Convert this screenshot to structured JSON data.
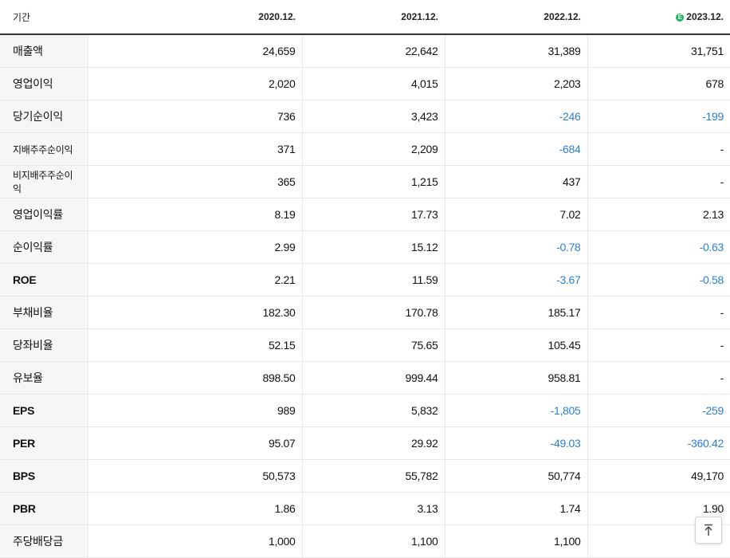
{
  "header": {
    "label": "기간",
    "periods": [
      "2020.12.",
      "2021.12.",
      "2022.12.",
      "2023.12."
    ],
    "estimate_marker": "E"
  },
  "rows": [
    {
      "label": "매출액",
      "values": [
        "24,659",
        "22,642",
        "31,389",
        "31,751"
      ]
    },
    {
      "label": "영업이익",
      "values": [
        "2,020",
        "4,015",
        "2,203",
        "678"
      ]
    },
    {
      "label": "당기순이익",
      "values": [
        "736",
        "3,423",
        "-246",
        "-199"
      ]
    },
    {
      "label": "지배주주순이익",
      "values": [
        "371",
        "2,209",
        "-684",
        "-"
      ]
    },
    {
      "label": "비지배주주순이익",
      "values": [
        "365",
        "1,215",
        "437",
        "-"
      ]
    },
    {
      "label": "영업이익률",
      "values": [
        "8.19",
        "17.73",
        "7.02",
        "2.13"
      ]
    },
    {
      "label": "순이익률",
      "values": [
        "2.99",
        "15.12",
        "-0.78",
        "-0.63"
      ]
    },
    {
      "label": "ROE",
      "values": [
        "2.21",
        "11.59",
        "-3.67",
        "-0.58"
      ]
    },
    {
      "label": "부채비율",
      "values": [
        "182.30",
        "170.78",
        "185.17",
        "-"
      ]
    },
    {
      "label": "당좌비율",
      "values": [
        "52.15",
        "75.65",
        "105.45",
        "-"
      ]
    },
    {
      "label": "유보율",
      "values": [
        "898.50",
        "999.44",
        "958.81",
        "-"
      ]
    },
    {
      "label": "EPS",
      "values": [
        "989",
        "5,832",
        "-1,805",
        "-259"
      ]
    },
    {
      "label": "PER",
      "values": [
        "95.07",
        "29.92",
        "-49.03",
        "-360.42"
      ]
    },
    {
      "label": "BPS",
      "values": [
        "50,573",
        "55,782",
        "50,774",
        "49,170"
      ]
    },
    {
      "label": "PBR",
      "values": [
        "1.86",
        "3.13",
        "1.74",
        "1.90"
      ]
    },
    {
      "label": "주당배당금",
      "values": [
        "1,000",
        "1,100",
        "1,100",
        ""
      ]
    }
  ],
  "colors": {
    "negative": "#2a7fd4",
    "estimate": "#19b55a",
    "label_bg": "#f5f6f8"
  },
  "top_button": {
    "icon": "arrow-up-to-top-icon"
  }
}
